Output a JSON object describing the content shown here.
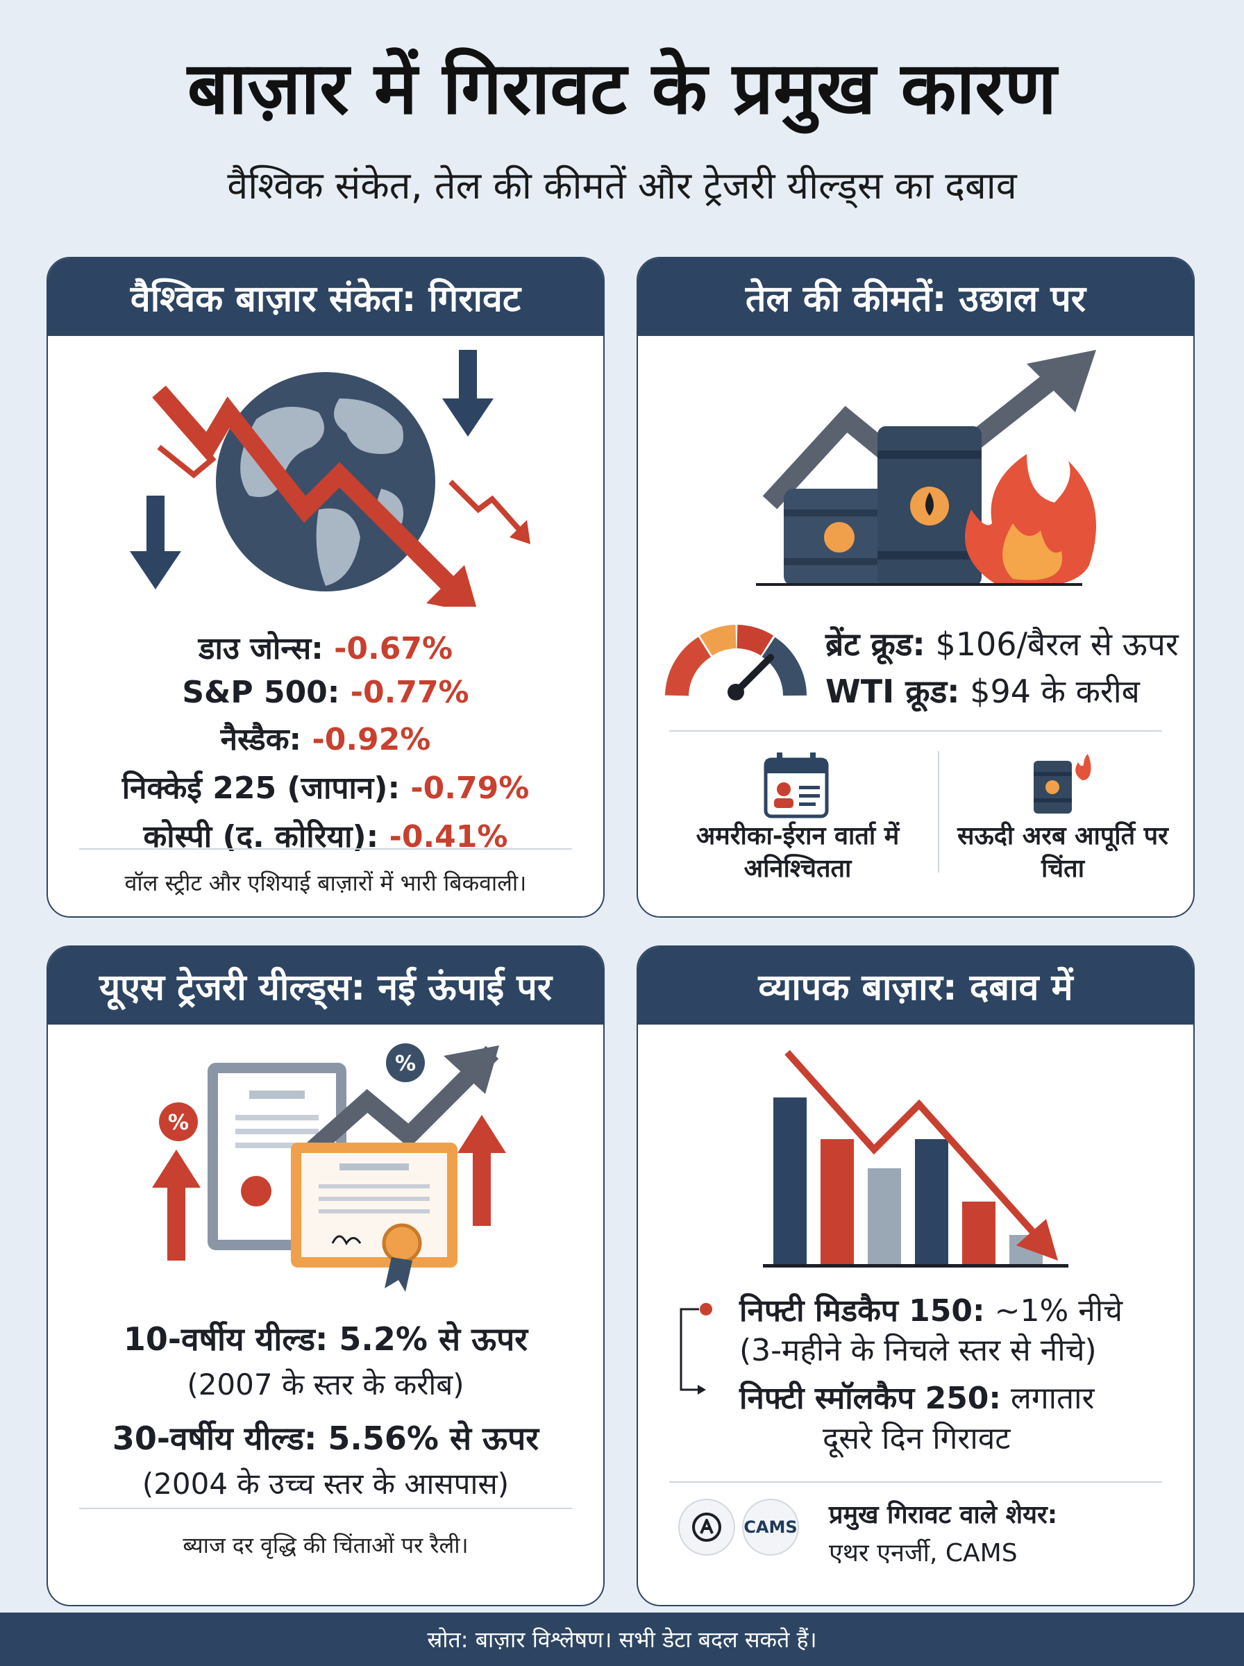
{
  "title": "बाज़ार में गिरावट के प्रमुख कारण",
  "subtitle": "वैश्विक संकेत, तेल की कीमतें और ट्रेजरी यील्ड्स का दबाव",
  "global": {
    "heading": "वैश्विक बाज़ार संकेत: गिरावट",
    "items": [
      {
        "label": "डाउ जोन्स:",
        "value": "-0.67%"
      },
      {
        "label": "S&P 500:",
        "value": "-0.77%"
      },
      {
        "label": "नैस्डैक:",
        "value": "-0.92%"
      },
      {
        "label": "निक्केई 225 (जापान):",
        "value": "-0.79%"
      },
      {
        "label": "कोस्पी (द. कोरिया):",
        "value": "-0.41%"
      }
    ],
    "note": "वॉल स्ट्रीट और एशियाई बाज़ारों में भारी बिकवाली।"
  },
  "oil": {
    "heading": "तेल की कीमतें: उछाल पर",
    "brent_label": "ब्रेंट क्रूड:",
    "brent_value": "$106/बैरल से ऊपर",
    "wti_label": "WTI क्रूड:",
    "wti_value": "$94 के करीब",
    "factor1": "अमरीका-ईरान वार्ता में अनिश्चितता",
    "factor2": "सऊदी अरब आपूर्ति पर चिंता"
  },
  "treasury": {
    "heading": "यूएस ट्रेजरी यील्ड्स: नई ऊंपाई पर",
    "y10": "10-वर्षीय यील्ड: 5.2% से ऊपर",
    "y10_sub": "(2007 के स्तर के करीब)",
    "y30": "30-वर्षीय यील्ड: 5.56% से ऊपर",
    "y30_sub": "(2004 के उच्च स्तर के आसपास)",
    "note": "ब्याज दर वृद्धि की चिंताओं पर रैली।",
    "badge": "%"
  },
  "broad": {
    "heading": "व्यापक बाज़ार: दबाव में",
    "mid_label": "निफ्टी मिडकैप 150:",
    "mid_value": "~1% नीचे",
    "mid_sub": "(3-महीने के निचले स्तर से नीचे)",
    "small_label": "निफ्टी स्मॉलकैप 250:",
    "small_value": "लगातार",
    "small_sub": "दूसरे दिन गिरावट",
    "stocks_label": "प्रमुख गिरावट वाले शेयर:",
    "stocks": "एथर एनर्जी, CAMS",
    "logo2": "CAMS",
    "bars": [
      0.8,
      0.6,
      0.46,
      0.6,
      0.3,
      0.14
    ]
  },
  "footer": "स्रोत: बाज़ार विश्लेषण। सभी डेटा बदल सकते हैं।",
  "colors": {
    "navy": "#2d4562",
    "red": "#c8402f",
    "orange": "#f0a04a",
    "grey": "#9aa8b6"
  }
}
